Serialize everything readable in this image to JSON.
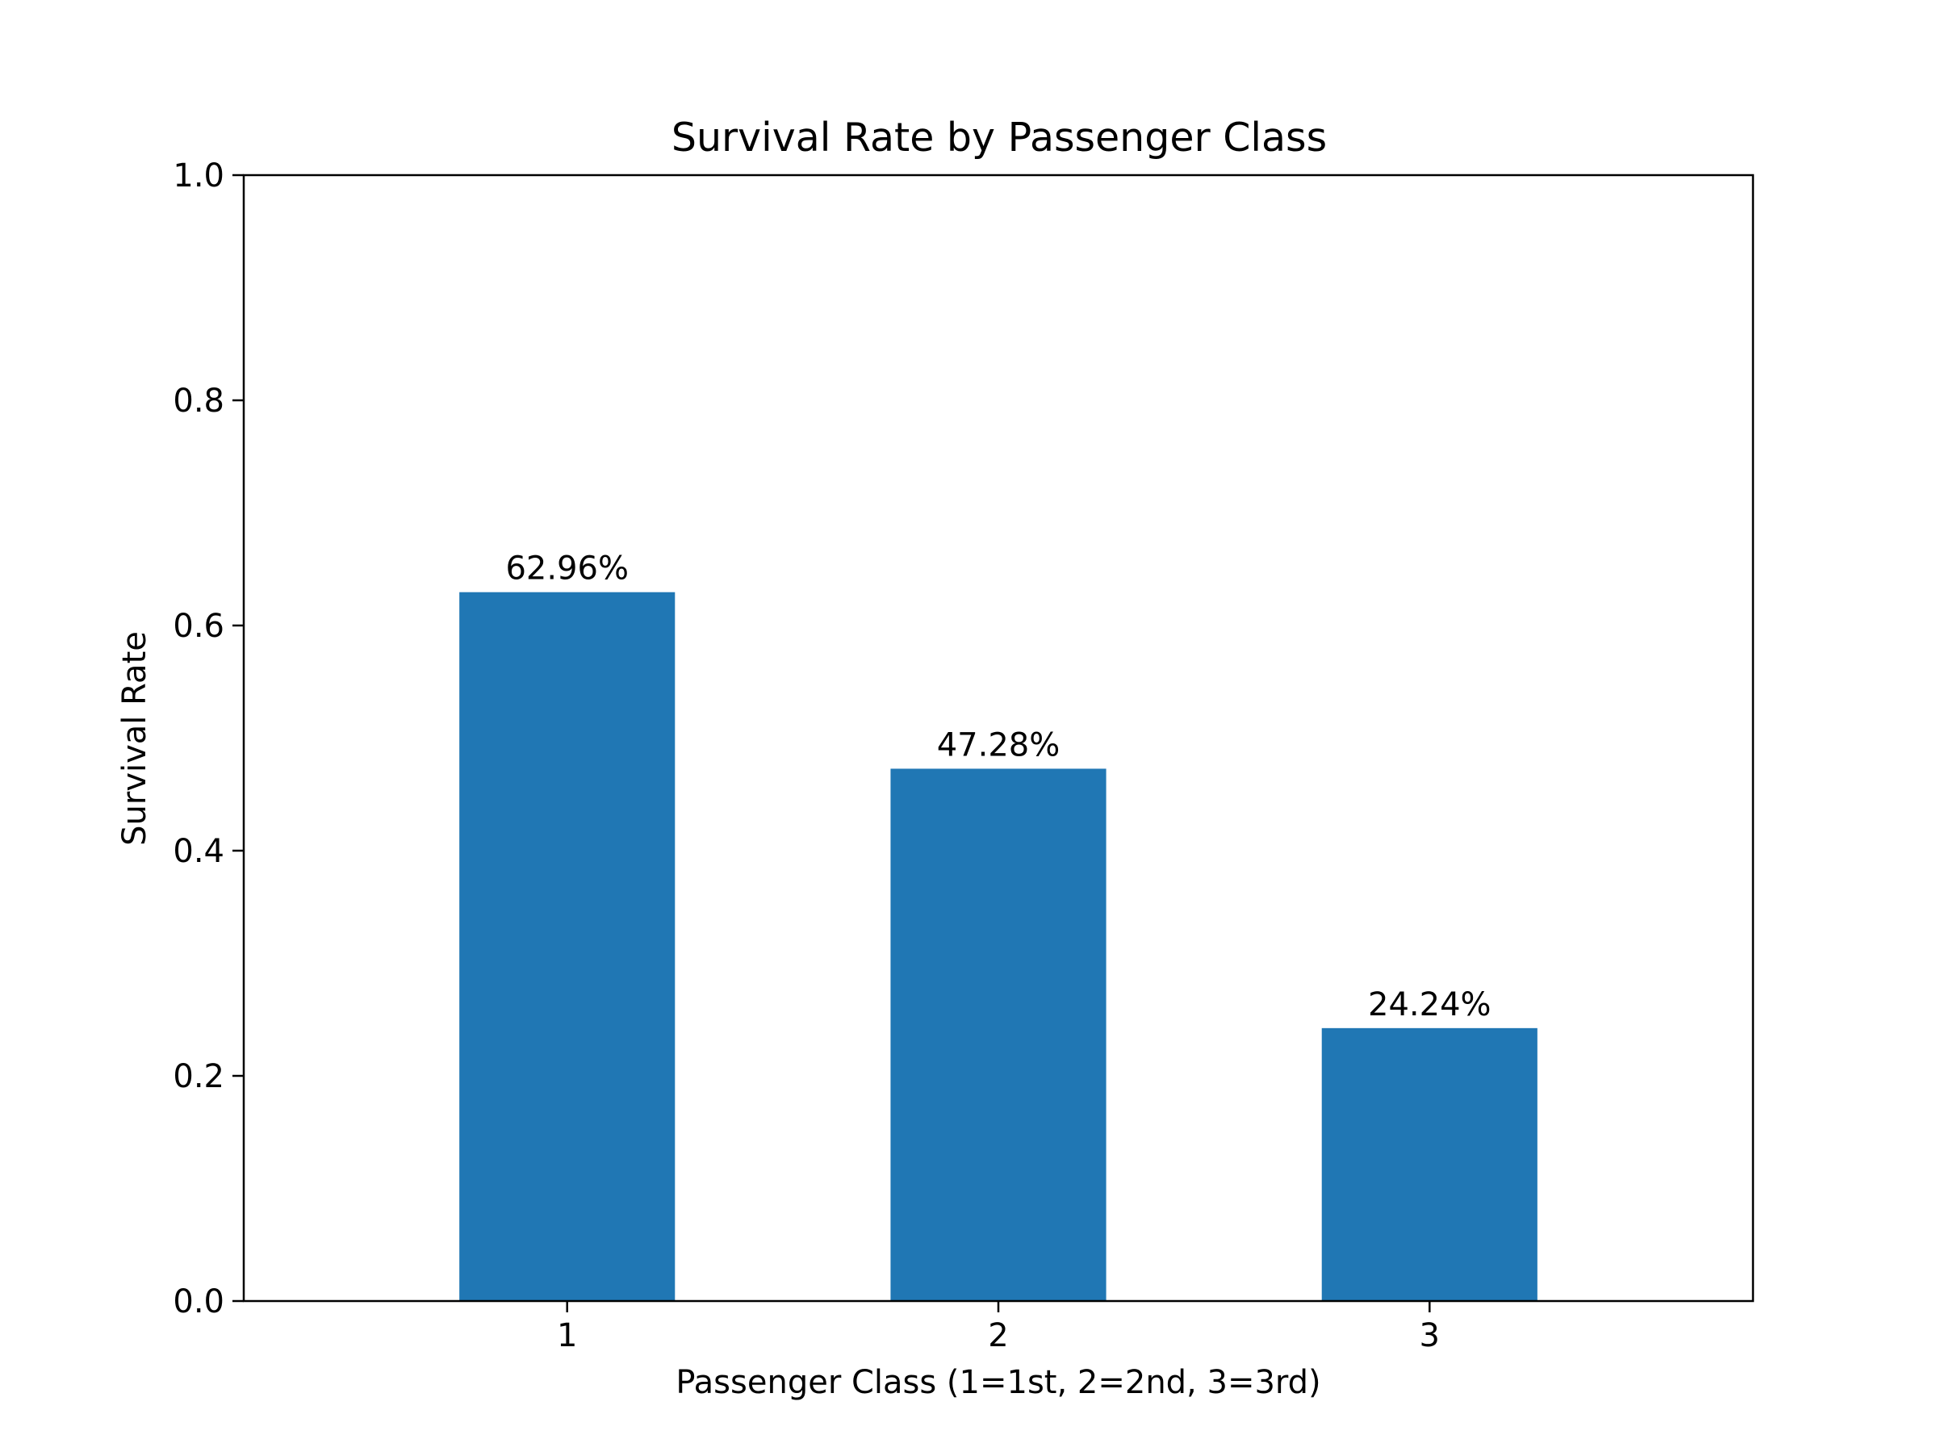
{
  "chart_data": {
    "type": "bar",
    "title": "Survival Rate by Passenger Class",
    "xlabel": "Passenger Class (1=1st, 2=2nd, 3=3rd)",
    "ylabel": "Survival Rate",
    "categories": [
      "1",
      "2",
      "3"
    ],
    "values": [
      0.6296,
      0.4728,
      0.2424
    ],
    "data_labels": [
      "62.96%",
      "47.28%",
      "24.24%"
    ],
    "ylim": [
      0,
      1.0
    ],
    "yticks": [
      0.0,
      0.2,
      0.4,
      0.6,
      0.8,
      1.0
    ],
    "ytick_labels": [
      "0.0",
      "0.2",
      "0.4",
      "0.6",
      "0.8",
      "1.0"
    ],
    "grid": false,
    "legend": "none",
    "bar_color": "#2077b4"
  }
}
